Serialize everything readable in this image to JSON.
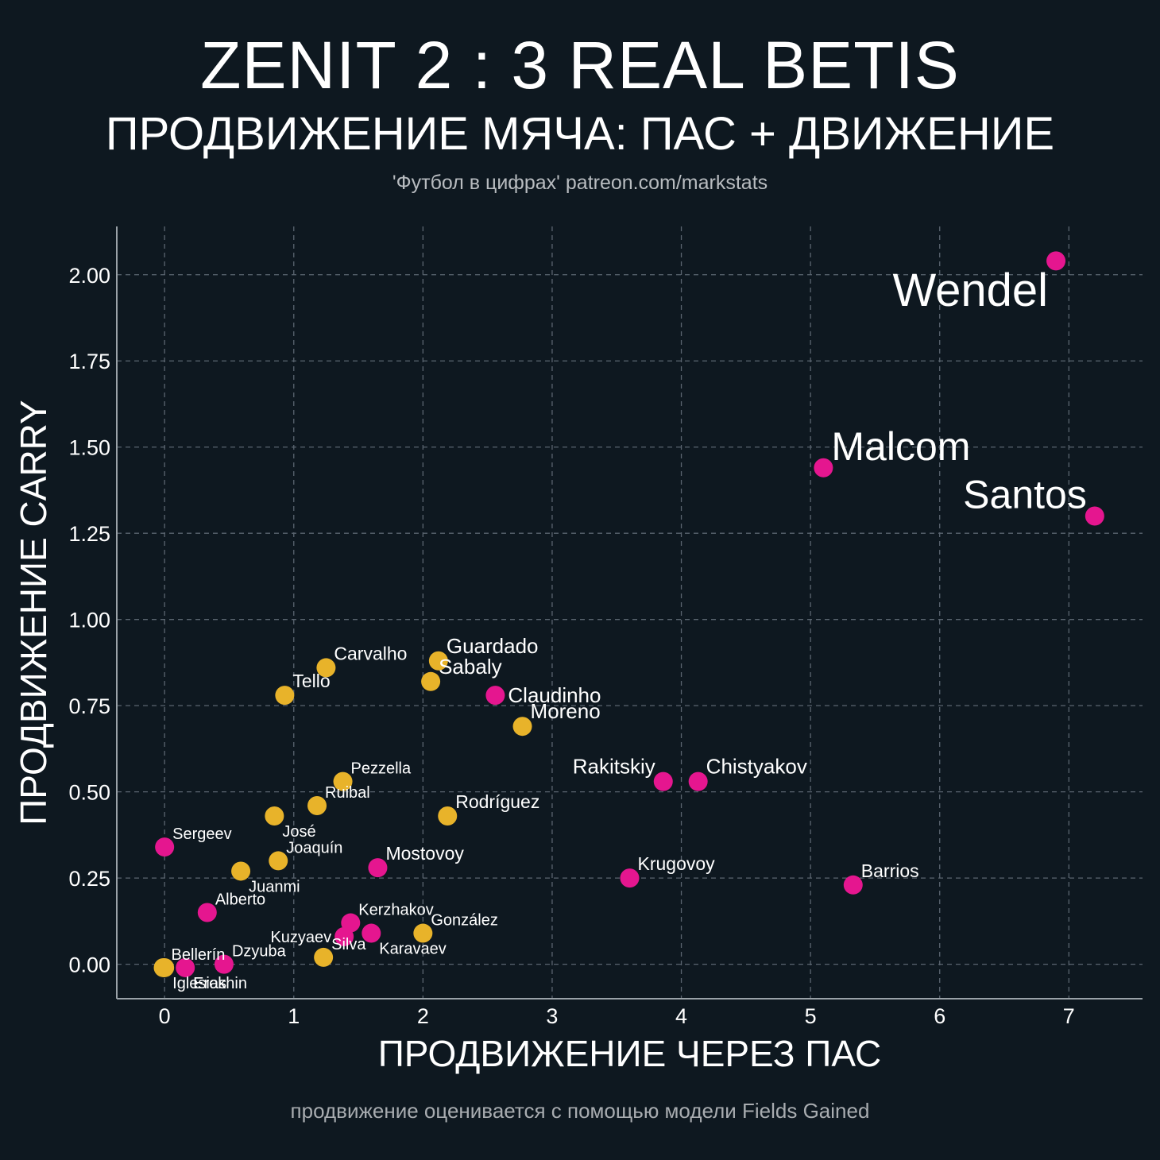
{
  "header": {
    "title": "ZENIT 2 : 3 REAL BETIS",
    "subtitle": "ПРОДВИЖЕНИЕ МЯЧА: ПАС + ДВИЖЕНИЕ",
    "source": "'Футбол в цифрах' patreon.com/markstats"
  },
  "footer": {
    "note": "продвижение оценивается с помощью модели Fields Gained"
  },
  "colors": {
    "background": "#0e1820",
    "zenit": "#e5168f",
    "betis": "#e8b32a",
    "grid": "#5b6570",
    "text": "#ffffff"
  },
  "chart_data": {
    "type": "scatter",
    "title": "ПРОДВИЖЕНИЕ МЯЧА: ПАС + ДВИЖЕНИЕ",
    "xlabel": "ПРОДВИЖЕНИЕ ЧЕРЕЗ ПАС",
    "ylabel": "ПРОДВИЖЕНИЕ CARRY",
    "xlim": [
      -0.37,
      7.57
    ],
    "ylim": [
      -0.1,
      2.14
    ],
    "xticks": [
      0,
      1,
      2,
      3,
      4,
      5,
      6,
      7
    ],
    "xtick_labels": [
      "0",
      "1",
      "2",
      "3",
      "4",
      "5",
      "6",
      "7"
    ],
    "yticks": [
      0.0,
      0.25,
      0.5,
      0.75,
      1.0,
      1.25,
      1.5,
      1.75,
      2.0
    ],
    "ytick_labels": [
      "0.00",
      "0.25",
      "0.50",
      "0.75",
      "1.00",
      "1.25",
      "1.50",
      "1.75",
      "2.00"
    ],
    "grid": true,
    "series": [
      {
        "name": "Zenit",
        "color": "#e5168f"
      },
      {
        "name": "Real Betis",
        "color": "#e8b32a"
      }
    ],
    "points": [
      {
        "name": "Wendel",
        "team": "Zenit",
        "x": 6.9,
        "y": 2.04,
        "label_pos": "below-left",
        "label_size": "xl"
      },
      {
        "name": "Malcom",
        "team": "Zenit",
        "x": 5.1,
        "y": 1.44,
        "label_pos": "above-right",
        "label_size": "lg"
      },
      {
        "name": "Santos",
        "team": "Zenit",
        "x": 7.2,
        "y": 1.3,
        "label_pos": "above-left",
        "label_size": "lg"
      },
      {
        "name": "Claudinho",
        "team": "Zenit",
        "x": 2.56,
        "y": 0.78,
        "label_pos": "right",
        "label_size": "md"
      },
      {
        "name": "Rakitskiy",
        "team": "Zenit",
        "x": 3.86,
        "y": 0.53,
        "label_pos": "above-left",
        "label_size": "md"
      },
      {
        "name": "Chistyakov",
        "team": "Zenit",
        "x": 4.13,
        "y": 0.53,
        "label_pos": "above-right",
        "label_size": "md"
      },
      {
        "name": "Krugovoy",
        "team": "Zenit",
        "x": 3.6,
        "y": 0.25,
        "label_pos": "above-right",
        "label_size": "sm"
      },
      {
        "name": "Barrios",
        "team": "Zenit",
        "x": 5.33,
        "y": 0.23,
        "label_pos": "above-right",
        "label_size": "sm"
      },
      {
        "name": "Sergeev",
        "team": "Zenit",
        "x": 0.0,
        "y": 0.34,
        "label_pos": "above-right",
        "label_size": "xs"
      },
      {
        "name": "Mostovoy",
        "team": "Zenit",
        "x": 1.65,
        "y": 0.28,
        "label_pos": "above-right",
        "label_size": "sm"
      },
      {
        "name": "Alberto",
        "team": "Zenit",
        "x": 0.33,
        "y": 0.15,
        "label_pos": "above-right",
        "label_size": "xs"
      },
      {
        "name": "Kerzhakov",
        "team": "Zenit",
        "x": 1.44,
        "y": 0.12,
        "label_pos": "above-right",
        "label_size": "xs"
      },
      {
        "name": "Kuzyaev",
        "team": "Zenit",
        "x": 1.39,
        "y": 0.08,
        "label_pos": "left",
        "label_size": "xs"
      },
      {
        "name": "Karavaev",
        "team": "Zenit",
        "x": 1.6,
        "y": 0.09,
        "label_pos": "below-right",
        "label_size": "xs"
      },
      {
        "name": "Dzyuba",
        "team": "Zenit",
        "x": 0.46,
        "y": 0.0,
        "label_pos": "above-right",
        "label_size": "xs"
      },
      {
        "name": "Erokhin",
        "team": "Zenit",
        "x": 0.16,
        "y": -0.01,
        "label_pos": "below-right",
        "label_size": "xs"
      },
      {
        "name": "Carvalho",
        "team": "Real Betis",
        "x": 1.25,
        "y": 0.86,
        "label_pos": "above-right",
        "label_size": "sm"
      },
      {
        "name": "Guardado",
        "team": "Real Betis",
        "x": 2.12,
        "y": 0.88,
        "label_pos": "above-right",
        "label_size": "md"
      },
      {
        "name": "Sabaly",
        "team": "Real Betis",
        "x": 2.06,
        "y": 0.82,
        "label_pos": "above-right",
        "label_size": "md"
      },
      {
        "name": "Tello",
        "team": "Real Betis",
        "x": 0.93,
        "y": 0.78,
        "label_pos": "above-right",
        "label_size": "sm"
      },
      {
        "name": "Moreno",
        "team": "Real Betis",
        "x": 2.77,
        "y": 0.69,
        "label_pos": "above-right",
        "label_size": "md"
      },
      {
        "name": "Pezzella",
        "team": "Real Betis",
        "x": 1.38,
        "y": 0.53,
        "label_pos": "above-right",
        "label_size": "xs"
      },
      {
        "name": "Ruibal",
        "team": "Real Betis",
        "x": 1.18,
        "y": 0.46,
        "label_pos": "above-right",
        "label_size": "xs"
      },
      {
        "name": "José",
        "team": "Real Betis",
        "x": 0.85,
        "y": 0.43,
        "label_pos": "below-right",
        "label_size": "xs"
      },
      {
        "name": "Rodríguez",
        "team": "Real Betis",
        "x": 2.19,
        "y": 0.43,
        "label_pos": "above-right",
        "label_size": "sm"
      },
      {
        "name": "Joaquín",
        "team": "Real Betis",
        "x": 0.88,
        "y": 0.3,
        "label_pos": "above-right",
        "label_size": "xs"
      },
      {
        "name": "Juanmi",
        "team": "Real Betis",
        "x": 0.59,
        "y": 0.27,
        "label_pos": "below-right",
        "label_size": "xs"
      },
      {
        "name": "González",
        "team": "Real Betis",
        "x": 2.0,
        "y": 0.09,
        "label_pos": "above-right",
        "label_size": "xs"
      },
      {
        "name": "Silva",
        "team": "Real Betis",
        "x": 1.23,
        "y": 0.02,
        "label_pos": "above-right",
        "label_size": "xs"
      },
      {
        "name": "Bellerín",
        "team": "Real Betis",
        "x": -0.01,
        "y": -0.01,
        "label_pos": "above-right",
        "label_size": "xs"
      },
      {
        "name": "Iglesias",
        "team": "Real Betis",
        "x": 0.0,
        "y": -0.01,
        "label_pos": "below-right",
        "label_size": "xs"
      }
    ]
  }
}
